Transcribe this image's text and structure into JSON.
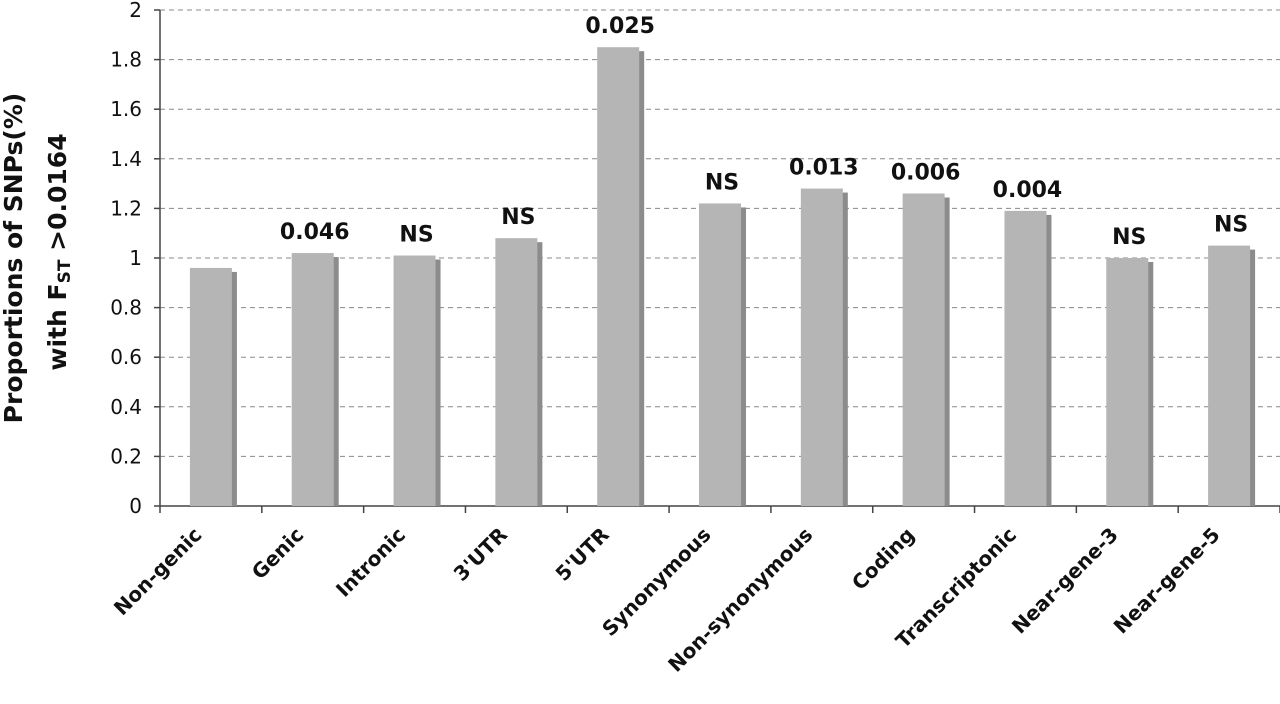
{
  "chart_data": {
    "type": "bar",
    "y_label_line1": "Proportions of SNPs(%)",
    "y_label_line2": {
      "before": "with F",
      "sub": "ST",
      "after": " >0.0164"
    },
    "categories": [
      "Non-genic",
      "Genic",
      "Intronic",
      "3'UTR",
      "5'UTR",
      "Synonymous",
      "Non-synonymous",
      "Coding",
      "Transcriptonic",
      "Near-gene-3",
      "Near-gene-5"
    ],
    "values": [
      0.96,
      1.02,
      1.01,
      1.08,
      1.85,
      1.22,
      1.28,
      1.26,
      1.19,
      1.0,
      1.05
    ],
    "annotations": [
      null,
      "0.046",
      "NS",
      "NS",
      "0.025",
      "NS",
      "0.013",
      "0.006",
      "0.004",
      "NS",
      "NS"
    ],
    "color": "#b5b5b5",
    "shadow_color": "#8c8c8c",
    "ylim": [
      0,
      2
    ],
    "yticks": [
      0,
      0.2,
      0.4,
      0.6,
      0.8,
      1,
      1.2,
      1.4,
      1.6,
      1.8,
      2
    ],
    "grid": true
  }
}
